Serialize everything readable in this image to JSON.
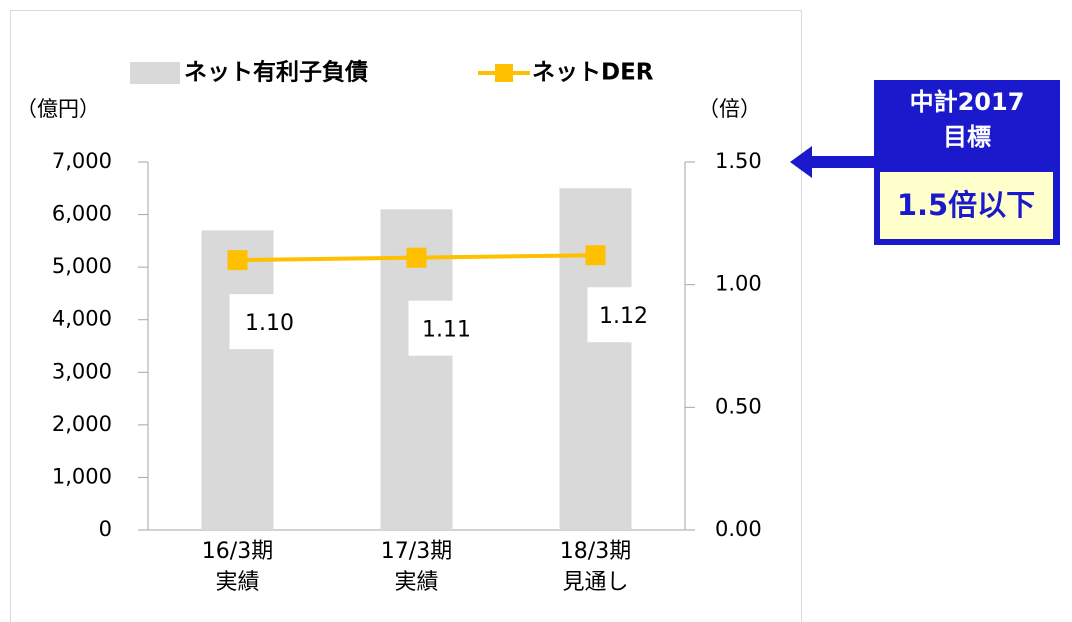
{
  "chart_data": {
    "type": "bar-line",
    "categories": [
      "16/3期\n実績",
      "17/3期\n実績",
      "18/3期\n見通し"
    ],
    "series": [
      {
        "name": "ネット有利子負債",
        "type": "bar",
        "color": "#d9d9d9",
        "values": [
          5700,
          6100,
          6500
        ]
      },
      {
        "name": "ネットDER",
        "type": "line",
        "axis": "y2",
        "color": "#ffc000",
        "values": [
          1.1,
          1.11,
          1.12
        ],
        "value_labels": [
          "1.10",
          "1.11",
          "1.12"
        ]
      }
    ],
    "y_label": "（億円）",
    "y2_label": "（倍）",
    "ylim": [
      0,
      7000
    ],
    "yticks": [
      0,
      {
        "value": 1000,
        "label": "1,000"
      },
      {
        "value": 2000,
        "label": "2,000"
      },
      {
        "value": 3000,
        "label": "3,000"
      },
      {
        "value": 4000,
        "label": "4,000"
      },
      {
        "value": 5000,
        "label": "5,000"
      },
      {
        "value": 6000,
        "label": "6,000"
      },
      {
        "value": 7000,
        "label": "7,000"
      }
    ],
    "y2lim": [
      0,
      1.5
    ],
    "y2ticks": [
      {
        "value": 0,
        "label": "0.00"
      },
      {
        "value": 0.5,
        "label": "0.50"
      },
      {
        "value": 1,
        "label": "1.00"
      },
      {
        "value": 1.5,
        "label": "1.50"
      }
    ],
    "legend": "top",
    "annotation": {
      "title": [
        "中計2017",
        "目標"
      ],
      "text": "1.5倍以下",
      "color": "#1a1acc",
      "fill": "#ffffcc"
    }
  }
}
